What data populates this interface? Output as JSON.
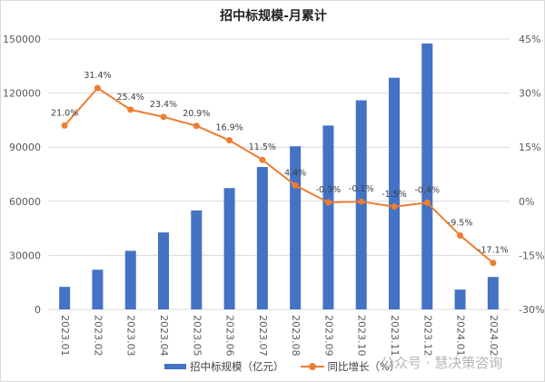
{
  "chart_data": {
    "type": "bar+line",
    "title": "招中标规模-月累计",
    "categories": [
      "2023.01",
      "2023.02",
      "2023.03",
      "2023.04",
      "2023.05",
      "2023.06",
      "2023.07",
      "2023.08",
      "2023.09",
      "2023.10",
      "2023.11",
      "2023.12",
      "2024.01",
      "2024.02"
    ],
    "series": [
      {
        "name": "招中标规模（亿元）",
        "type": "bar",
        "axis": "left",
        "color": "#4472c4",
        "values": [
          12500,
          22000,
          32500,
          42700,
          54900,
          67300,
          79000,
          90500,
          102000,
          116000,
          128500,
          147500,
          11000,
          18000
        ]
      },
      {
        "name": "同比增长（%）",
        "type": "line",
        "axis": "right",
        "color": "#ed7d31",
        "values": [
          21.0,
          31.4,
          25.4,
          23.4,
          20.9,
          16.9,
          11.5,
          4.4,
          -0.3,
          -0.1,
          -1.5,
          -0.4,
          -9.5,
          -17.1
        ],
        "labels": [
          "21.0%",
          "31.4%",
          "25.4%",
          "23.4%",
          "20.9%",
          "16.9%",
          "11.5%",
          "4.4%",
          "-0.3%",
          "-0.1%",
          "-1.5%",
          "-0.4%",
          "-9.5%",
          "-17.1%"
        ]
      }
    ],
    "y_left": {
      "ylim": [
        0,
        150000
      ],
      "ticks": [
        "0",
        "30000",
        "60000",
        "90000",
        "120000",
        "150000"
      ]
    },
    "y_right": {
      "ylim": [
        -30,
        45
      ],
      "ticks": [
        "-30%",
        "-15%",
        "0%",
        "15%",
        "30%",
        "45%"
      ]
    },
    "grid": true,
    "legend": "bottom"
  },
  "watermark": "公众号 · 慧决策咨询"
}
